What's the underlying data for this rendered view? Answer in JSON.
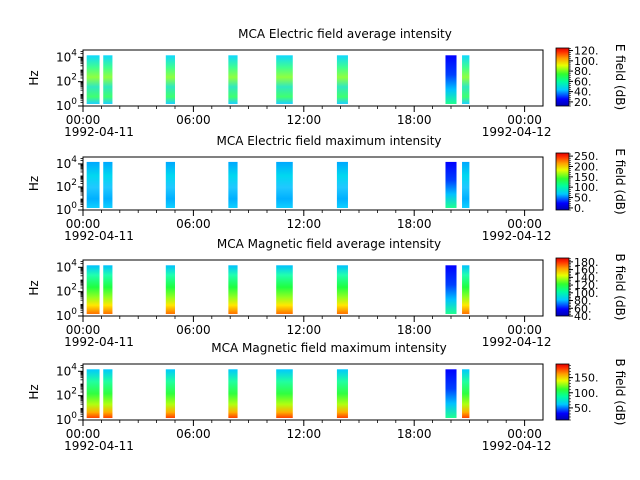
{
  "figure": {
    "x_ticks": [
      "00:00",
      "06:00",
      "12:00",
      "18:00",
      "00:00"
    ],
    "x_tick_hours": [
      0,
      6,
      12,
      18,
      24
    ],
    "start_date": "1992-04-11",
    "end_date": "1992-04-12"
  },
  "chart_data": [
    {
      "type": "heatmap",
      "title": "MCA  Electric field average intensity",
      "ylabel": "Hz",
      "yscale": "log",
      "y_ticks": [
        {
          "exp": "0",
          "value": 1
        },
        {
          "exp": "2",
          "value": 100
        },
        {
          "exp": "4",
          "value": 10000
        }
      ],
      "xlim_hours": [
        0,
        25
      ],
      "time_blocks_hours": [
        [
          0.2,
          0.9
        ],
        [
          1.1,
          1.6
        ],
        [
          4.5,
          5.0
        ],
        [
          7.9,
          8.4
        ],
        [
          10.5,
          11.4
        ],
        [
          13.8,
          14.4
        ],
        [
          19.7,
          20.3
        ],
        [
          20.6,
          21.0
        ]
      ],
      "colorbar_label": "E field (dB)",
      "colorbar_range": [
        12,
        125
      ],
      "colorbar_ticks": [
        "20.",
        "40.",
        "60.",
        "80.",
        "100.",
        "120."
      ],
      "colorbar_tick_values": [
        20,
        40,
        60,
        80,
        100,
        120
      ]
    },
    {
      "type": "heatmap",
      "title": "MCA  Electric field maximum intensity",
      "ylabel": "Hz",
      "yscale": "log",
      "y_ticks": [
        {
          "exp": "0",
          "value": 1
        },
        {
          "exp": "2",
          "value": 100
        },
        {
          "exp": "4",
          "value": 10000
        }
      ],
      "xlim_hours": [
        0,
        25
      ],
      "time_blocks_hours": [
        [
          0.2,
          0.9
        ],
        [
          1.1,
          1.6
        ],
        [
          4.5,
          5.0
        ],
        [
          7.9,
          8.4
        ],
        [
          10.5,
          11.4
        ],
        [
          13.8,
          14.4
        ],
        [
          19.7,
          20.3
        ],
        [
          20.6,
          21.0
        ]
      ],
      "colorbar_label": "E field (dB)",
      "colorbar_range": [
        -10,
        265
      ],
      "colorbar_ticks": [
        "0.",
        "50.",
        "100.",
        "150.",
        "200.",
        "250."
      ],
      "colorbar_tick_values": [
        0,
        50,
        100,
        150,
        200,
        250
      ]
    },
    {
      "type": "heatmap",
      "title": "MCA  Magnetic field average intensity",
      "ylabel": "Hz",
      "yscale": "log",
      "y_ticks": [
        {
          "exp": "0",
          "value": 1
        },
        {
          "exp": "2",
          "value": 100
        },
        {
          "exp": "4",
          "value": 10000
        }
      ],
      "xlim_hours": [
        0,
        25
      ],
      "time_blocks_hours": [
        [
          0.2,
          0.9
        ],
        [
          1.1,
          1.6
        ],
        [
          4.5,
          5.0
        ],
        [
          7.9,
          8.4
        ],
        [
          10.5,
          11.4
        ],
        [
          13.8,
          14.4
        ],
        [
          19.7,
          20.3
        ],
        [
          20.6,
          21.0
        ]
      ],
      "colorbar_label": "B field (dB)",
      "colorbar_range": [
        40,
        190
      ],
      "colorbar_ticks": [
        "40.",
        "60.",
        "80.",
        "100.",
        "120.",
        "140.",
        "160.",
        "180."
      ],
      "colorbar_tick_values": [
        40,
        60,
        80,
        100,
        120,
        140,
        160,
        180
      ]
    },
    {
      "type": "heatmap",
      "title": "MCA  Magnetic field maximum intensity",
      "ylabel": "Hz",
      "yscale": "log",
      "y_ticks": [
        {
          "exp": "0",
          "value": 1
        },
        {
          "exp": "2",
          "value": 100
        },
        {
          "exp": "4",
          "value": 10000
        }
      ],
      "xlim_hours": [
        0,
        25
      ],
      "time_blocks_hours": [
        [
          0.2,
          0.9
        ],
        [
          1.1,
          1.6
        ],
        [
          4.5,
          5.0
        ],
        [
          7.9,
          8.4
        ],
        [
          10.5,
          11.4
        ],
        [
          13.8,
          14.4
        ],
        [
          19.7,
          20.3
        ],
        [
          20.6,
          21.0
        ]
      ],
      "colorbar_label": "B field (dB)",
      "colorbar_range": [
        10,
        195
      ],
      "colorbar_ticks": [
        "50.",
        "100.",
        "150."
      ],
      "colorbar_tick_values": [
        50,
        100,
        150
      ]
    }
  ]
}
